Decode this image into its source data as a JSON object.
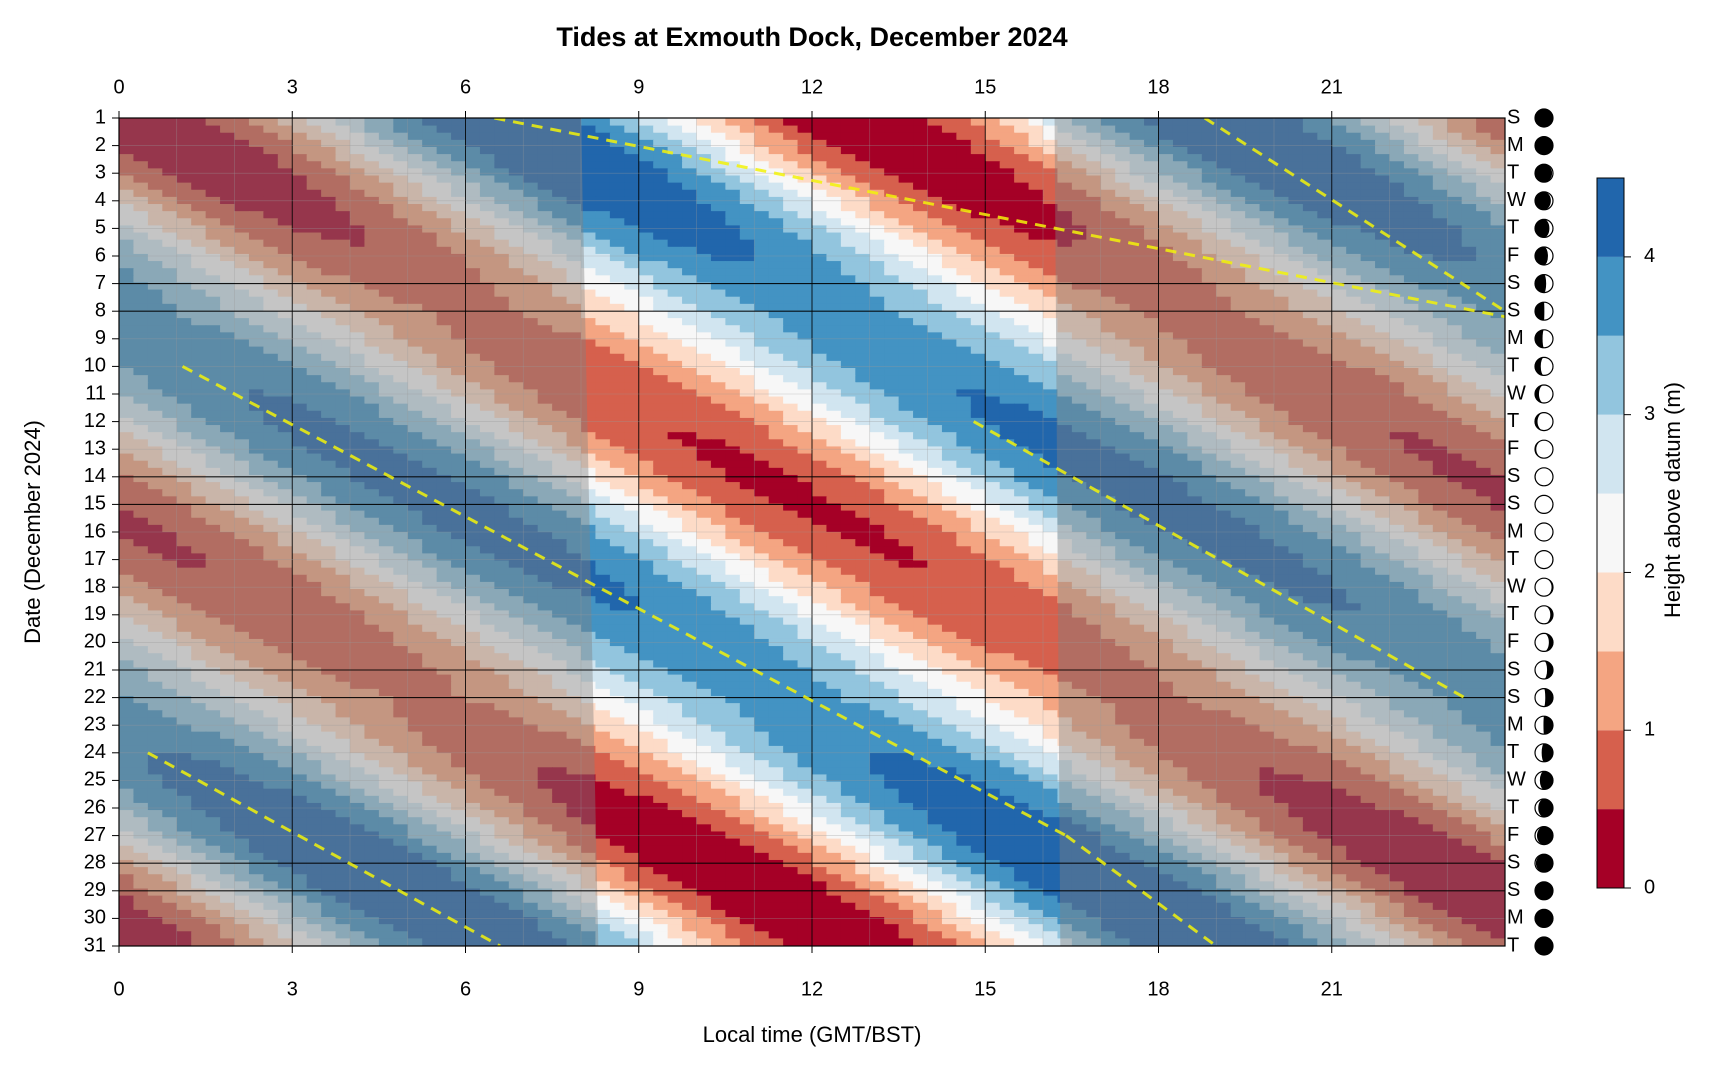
{
  "chart_data": {
    "type": "heatmap",
    "title": "Tides at Exmouth Dock, December 2024",
    "xlabel": "Local time (GMT/BST)",
    "ylabel": "Date (December 2024)",
    "x_ticks": [
      0,
      3,
      6,
      9,
      12,
      15,
      18,
      21
    ],
    "xlim": [
      0,
      24
    ],
    "y_ticks": [
      1,
      2,
      3,
      4,
      5,
      6,
      7,
      8,
      9,
      10,
      11,
      12,
      13,
      14,
      15,
      16,
      17,
      18,
      19,
      20,
      21,
      22,
      23,
      24,
      25,
      26,
      27,
      28,
      29,
      30,
      31
    ],
    "ylim": [
      1,
      31
    ],
    "weekday_letters": [
      "S",
      "M",
      "T",
      "W",
      "T",
      "F",
      "S",
      "S",
      "M",
      "T",
      "W",
      "T",
      "F",
      "S",
      "S",
      "M",
      "T",
      "W",
      "T",
      "F",
      "S",
      "S",
      "M",
      "T",
      "W",
      "T",
      "F",
      "S",
      "S",
      "M",
      "T"
    ],
    "moon_phase_lit_fraction": [
      0.0,
      0.0,
      0.05,
      0.12,
      0.2,
      0.28,
      0.38,
      0.48,
      0.58,
      0.68,
      0.78,
      0.86,
      0.93,
      0.97,
      1.0,
      1.0,
      0.97,
      0.92,
      0.85,
      0.77,
      0.67,
      0.57,
      0.47,
      0.37,
      0.27,
      0.18,
      0.11,
      0.05,
      0.02,
      0.0,
      0.0
    ],
    "colorbar": {
      "label": "Height above datum (m)",
      "ticks": [
        0,
        1,
        2,
        3,
        4
      ],
      "levels": [
        0,
        0.5,
        1.0,
        1.5,
        2.0,
        2.5,
        3.0,
        3.5,
        4.0,
        4.5
      ],
      "colors": [
        "#a50026",
        "#d6604d",
        "#f4a582",
        "#fddbc7",
        "#f7f7f7",
        "#d1e5f0",
        "#92c5de",
        "#4393c3",
        "#2166ac"
      ]
    },
    "daylight": {
      "sunrise_hours_day1_day31": [
        8.0,
        8.3
      ],
      "sunset_hours_day1_day31": [
        16.2,
        16.3
      ]
    },
    "tide_model": {
      "mean_level_m": 2.3,
      "amplitude_m_neap_spring": [
        1.5,
        2.2
      ],
      "first_high_water_hours_day1": [
        6.5,
        18.8
      ],
      "daily_delay_hours": 0.83,
      "spring_days": [
        1,
        15,
        31
      ]
    },
    "high_water_trend_lines": [
      {
        "start": {
          "hour": 6.5,
          "day": 1
        },
        "end": {
          "hour": 24,
          "day": 8.2
        }
      },
      {
        "start": {
          "hour": 1.1,
          "day": 10
        },
        "end": {
          "hour": 16.4,
          "day": 27
        }
      },
      {
        "start": {
          "hour": 18.8,
          "day": 1
        },
        "end": {
          "hour": 24,
          "day": 8
        }
      },
      {
        "start": {
          "hour": 0.5,
          "day": 24
        },
        "end": {
          "hour": 6.6,
          "day": 31
        }
      },
      {
        "start": {
          "hour": 16.4,
          "day": 27
        },
        "end": {
          "hour": 19,
          "day": 31
        }
      },
      {
        "start": {
          "hour": 14.8,
          "day": 12
        },
        "end": {
          "hour": 23.3,
          "day": 22
        }
      }
    ],
    "emphasized_date_gridlines": [
      7,
      8,
      14,
      15,
      21,
      22,
      28,
      29
    ]
  }
}
